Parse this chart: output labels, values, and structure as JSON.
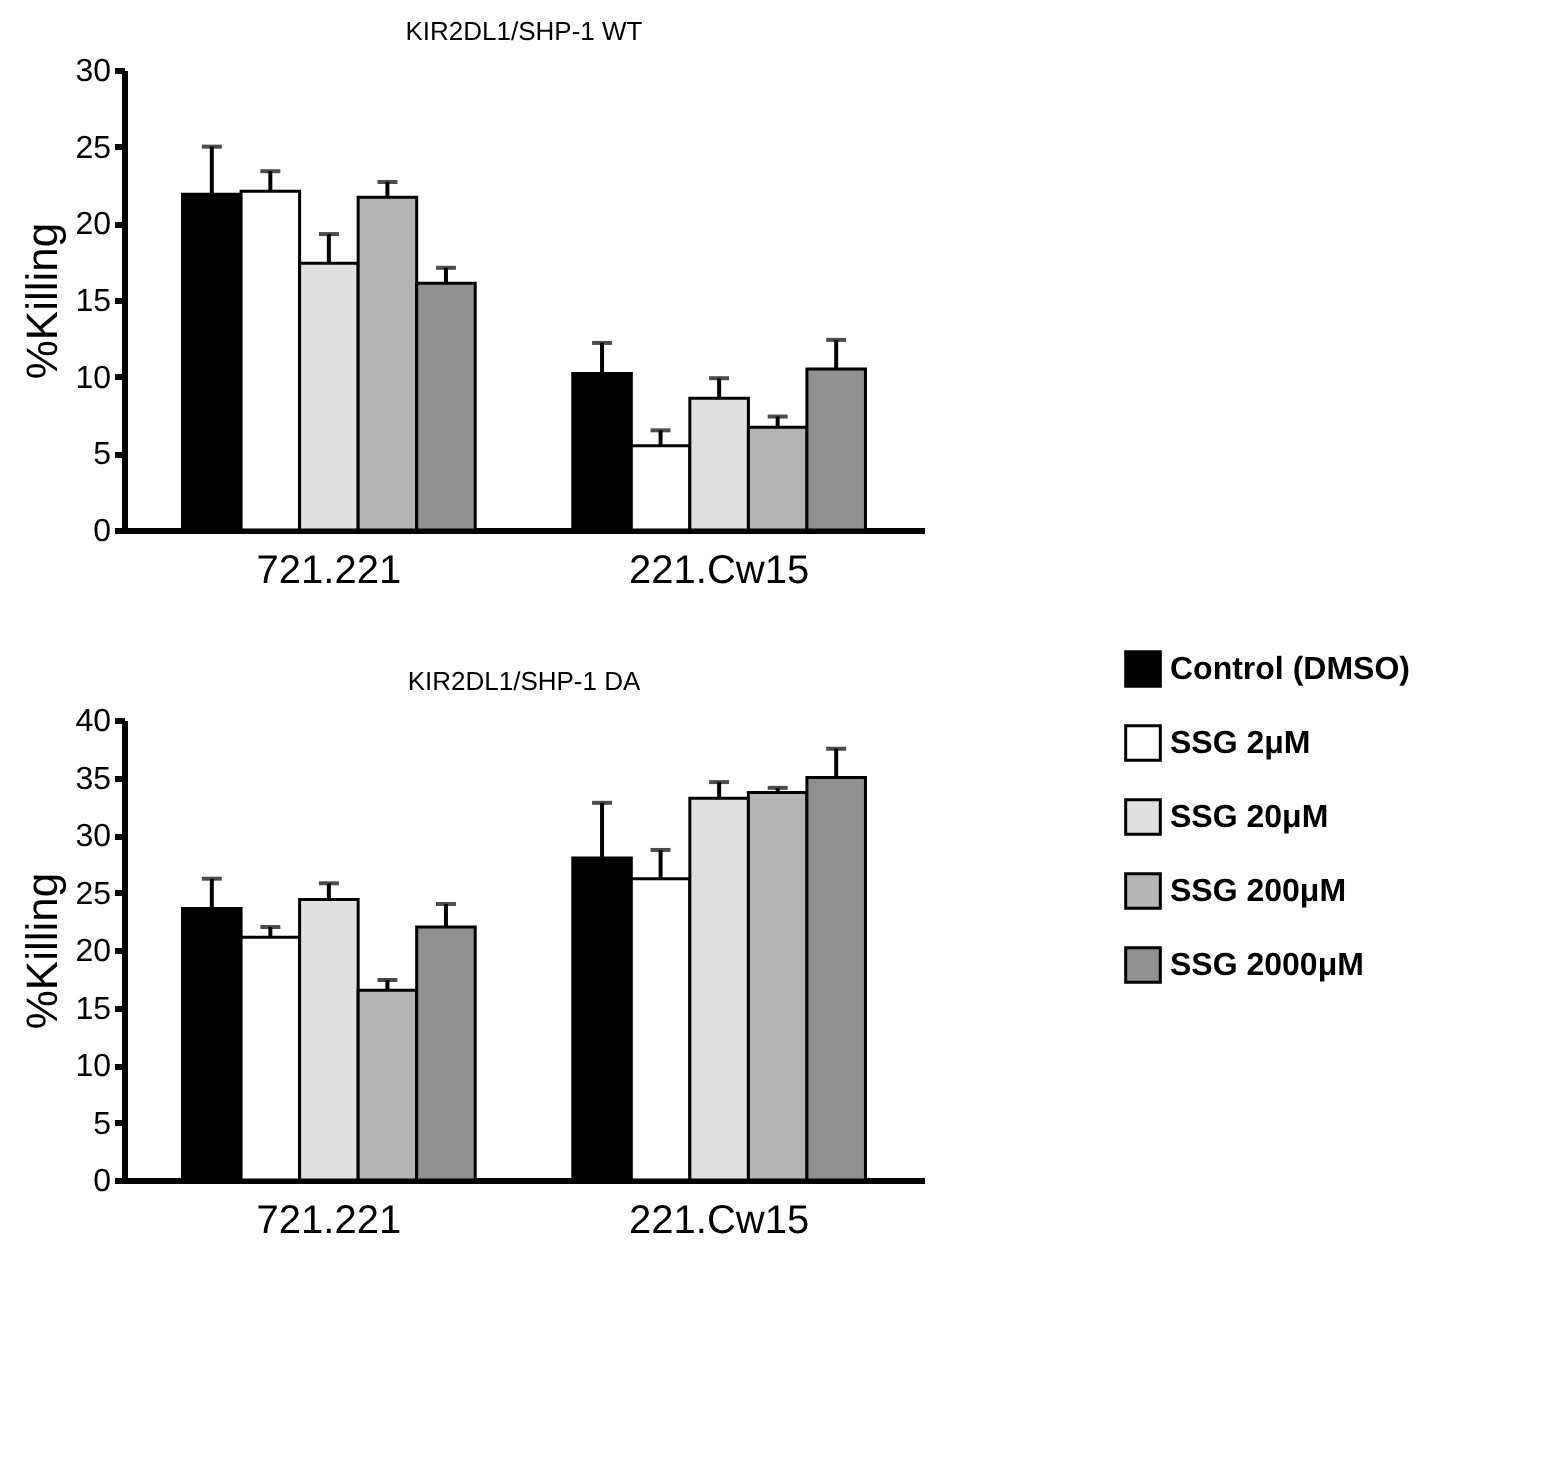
{
  "chart_data": [
    {
      "type": "bar",
      "title": "KIR2DL1/SHP-1 WT",
      "ylabel": "%Killing",
      "categories": [
        "721.221",
        "221.Cw15"
      ],
      "ylim": [
        0,
        30
      ],
      "yticks": [
        0,
        5,
        10,
        15,
        20,
        25,
        30
      ],
      "grid": false,
      "legend": "right",
      "series": [
        {
          "name": "Control (DMSO)",
          "color": "#000000",
          "values": [
            21.9,
            10.2
          ],
          "errors": [
            [
              21.9,
              25.0
            ],
            [
              10.2,
              12.2
            ]
          ]
        },
        {
          "name": "SSG 2μM",
          "color": "#ffffff",
          "values": [
            22.1,
            5.5
          ],
          "errors": [
            [
              22.1,
              23.4
            ],
            [
              5.5,
              6.5
            ]
          ]
        },
        {
          "name": "SSG 20μM",
          "color": "#e0e0e0",
          "values": [
            17.4,
            8.6
          ],
          "errors": [
            [
              17.4,
              19.3
            ],
            [
              8.6,
              9.9
            ]
          ]
        },
        {
          "name": "SSG 200μM",
          "color": "#b4b4b4",
          "values": [
            21.7,
            6.7
          ],
          "errors": [
            [
              21.7,
              22.7
            ],
            [
              6.7,
              7.4
            ]
          ]
        },
        {
          "name": "SSG 2000μM",
          "color": "#909090",
          "values": [
            16.1,
            10.5
          ],
          "errors": [
            [
              16.1,
              17.1
            ],
            [
              10.5,
              12.4
            ]
          ]
        }
      ]
    },
    {
      "type": "bar",
      "title": "KIR2DL1/SHP-1 DA",
      "ylabel": "%Killing",
      "categories": [
        "721.221",
        "221.Cw15"
      ],
      "ylim": [
        0,
        40
      ],
      "yticks": [
        0,
        5,
        10,
        15,
        20,
        25,
        30,
        35,
        40
      ],
      "grid": false,
      "legend": "right",
      "series": [
        {
          "name": "Control (DMSO)",
          "color": "#000000",
          "values": [
            23.6,
            28.0
          ],
          "errors": [
            [
              23.6,
              26.2
            ],
            [
              28.0,
              32.8
            ]
          ]
        },
        {
          "name": "SSG 2μM",
          "color": "#ffffff",
          "values": [
            21.1,
            26.2
          ],
          "errors": [
            [
              21.1,
              22.0
            ],
            [
              26.2,
              28.7
            ]
          ]
        },
        {
          "name": "SSG 20μM",
          "color": "#e0e0e0",
          "values": [
            24.4,
            33.2
          ],
          "errors": [
            [
              24.4,
              25.8
            ],
            [
              33.2,
              34.6
            ]
          ]
        },
        {
          "name": "SSG 200μM",
          "color": "#b4b4b4",
          "values": [
            16.5,
            33.7
          ],
          "errors": [
            [
              16.5,
              17.4
            ],
            [
              33.7,
              34.1
            ]
          ]
        },
        {
          "name": "SSG 2000μM",
          "color": "#909090",
          "values": [
            22.0,
            35.0
          ],
          "errors": [
            [
              22.0,
              24.0
            ],
            [
              35.0,
              37.5
            ]
          ]
        }
      ]
    }
  ]
}
